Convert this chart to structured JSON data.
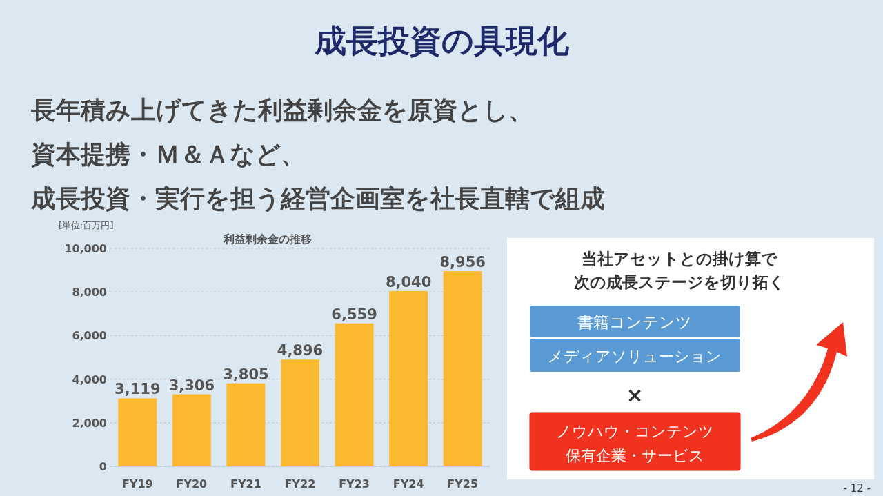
{
  "chart_data": [
    {
      "type": "other",
      "title": "成長投資の具現化",
      "annotations": [
        "長年積み上げてきた利益剰余金を原資とし、",
        "資本提携・Ｍ＆Ａなど、",
        "成長投資・実行を担う経営企画室を社長直轄で組成",
        "- 12 -"
      ]
    },
    {
      "type": "bar",
      "title": "利益剰余金の推移",
      "ylabel": "[単位:百万円]",
      "categories": [
        "FY19",
        "FY20",
        "FY21",
        "FY22",
        "FY23",
        "FY24",
        "FY25"
      ],
      "values": [
        3119,
        3306,
        3805,
        4896,
        6559,
        8040,
        8956
      ],
      "value_labels": [
        "3,119",
        "3,306",
        "3,805",
        "4,896",
        "6,559",
        "8,040",
        "8,956"
      ],
      "color": "#fbb931",
      "ylim": [
        0,
        10000
      ],
      "yticks": [
        {
          "value": 0,
          "label": "0"
        },
        {
          "value": 2000,
          "label": "2,000"
        },
        {
          "value": 4000,
          "label": "4,000"
        },
        {
          "value": 6000,
          "label": "6,000"
        },
        {
          "value": 8000,
          "label": "8,000"
        },
        {
          "value": 10000,
          "label": "10,000"
        }
      ],
      "grid": "y"
    },
    {
      "type": "other",
      "title": "当社アセットとの掛け算で",
      "subtitle": "次の成長ステージを切り拓く",
      "annotations": [
        "書籍コンテンツ",
        "メディアソリューション",
        "×",
        "ノウハウ・コンテンツ",
        "保有企業・サービス"
      ]
    }
  ]
}
